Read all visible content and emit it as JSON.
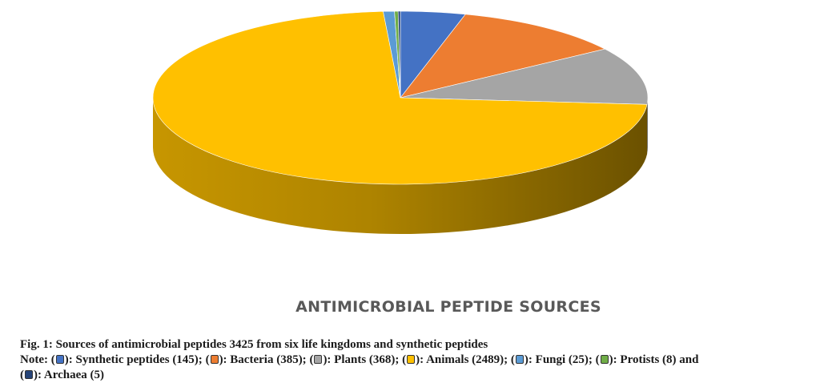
{
  "chart_data": {
    "type": "pie",
    "title": "ANTIMICROBIAL PEPTIDE SOURCES",
    "slices": [
      {
        "name": "Synthetic peptides",
        "value": 145,
        "color": "#4472C4"
      },
      {
        "name": "Bacteria",
        "value": 385,
        "color": "#ED7D31"
      },
      {
        "name": "Plants",
        "value": 368,
        "color": "#A5A5A5"
      },
      {
        "name": "Animals",
        "value": 2489,
        "color": "#FFC000"
      },
      {
        "name": "Fungi",
        "value": 25,
        "color": "#5B9BD5"
      },
      {
        "name": "Protists",
        "value": 8,
        "color": "#70AD47"
      },
      {
        "name": "Archaea",
        "value": 5,
        "color": "#264478"
      }
    ],
    "style": "3d"
  },
  "caption": {
    "figure_label": "Fig. 1:",
    "figure_text": "Sources of antimicrobial peptides 3425 from six life kingdoms and synthetic peptides",
    "note_label": "Note:",
    "legend": [
      {
        "text": "): Synthetic peptides (145);",
        "color": "#4472C4"
      },
      {
        "text": "): Bacteria (385);",
        "color": "#ED7D31"
      },
      {
        "text": "): Plants (368);",
        "color": "#A5A5A5"
      },
      {
        "text": "): Animals (2489);",
        "color": "#FFC000"
      },
      {
        "text": "): Fungi (25);",
        "color": "#5B9BD5"
      },
      {
        "text": "): Protists (8) and",
        "color": "#70AD47"
      },
      {
        "text": "): Archaea (5)",
        "color": "#264478"
      }
    ]
  }
}
